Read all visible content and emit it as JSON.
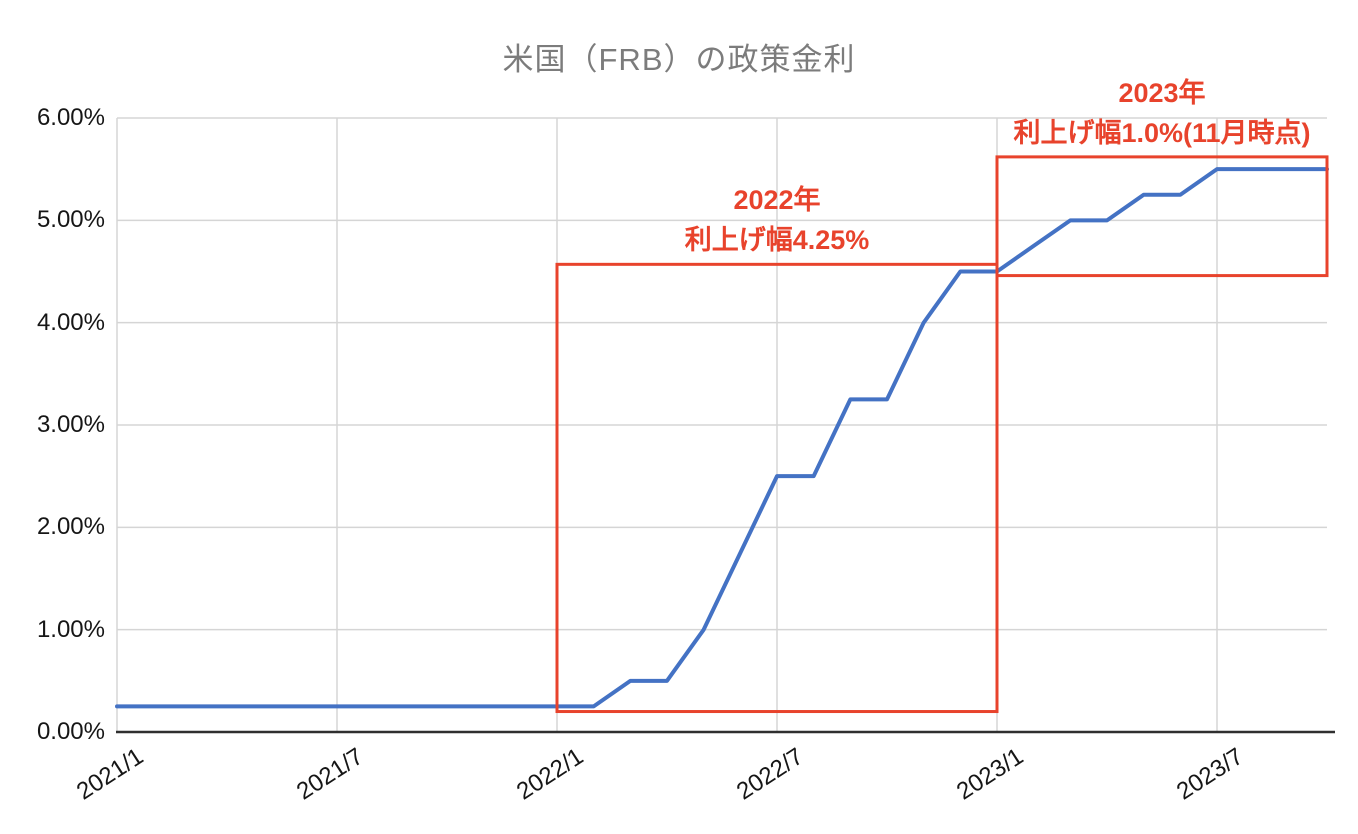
{
  "title": "米国（FRB）の政策金利",
  "colors": {
    "line": "#4472C4",
    "annotation": "#E8432C",
    "title": "#7C7C7C",
    "grid": "#D5D5D5",
    "axis": "#2F2F2F",
    "tick_label": "#161616",
    "background": "#FFFFFF"
  },
  "chart_data": {
    "type": "line",
    "title": "米国（FRB）の政策金利",
    "xlabel": "",
    "ylabel": "",
    "grid": true,
    "legend": "none",
    "ylim": [
      0,
      6
    ],
    "yticks": [
      {
        "value": 0,
        "label": "0.00%"
      },
      {
        "value": 1,
        "label": "1.00%"
      },
      {
        "value": 2,
        "label": "2.00%"
      },
      {
        "value": 3,
        "label": "3.00%"
      },
      {
        "value": 4,
        "label": "4.00%"
      },
      {
        "value": 5,
        "label": "5.00%"
      },
      {
        "value": 6,
        "label": "6.00%"
      }
    ],
    "xticks": [
      "2021/1",
      "2021/7",
      "2022/1",
      "2022/7",
      "2023/1",
      "2023/7"
    ],
    "x": [
      "2021/1",
      "2021/2",
      "2021/3",
      "2021/4",
      "2021/5",
      "2021/6",
      "2021/7",
      "2021/8",
      "2021/9",
      "2021/10",
      "2021/11",
      "2021/12",
      "2022/1",
      "2022/2",
      "2022/3",
      "2022/4",
      "2022/5",
      "2022/6",
      "2022/7",
      "2022/8",
      "2022/9",
      "2022/10",
      "2022/11",
      "2022/12",
      "2023/1",
      "2023/2",
      "2023/3",
      "2023/4",
      "2023/5",
      "2023/6",
      "2023/7",
      "2023/8",
      "2023/9",
      "2023/10"
    ],
    "series": [
      {
        "name": "政策金利",
        "values": [
          0.25,
          0.25,
          0.25,
          0.25,
          0.25,
          0.25,
          0.25,
          0.25,
          0.25,
          0.25,
          0.25,
          0.25,
          0.25,
          0.25,
          0.5,
          0.5,
          1.0,
          1.75,
          2.5,
          2.5,
          3.25,
          3.25,
          4.0,
          4.5,
          4.5,
          4.75,
          5.0,
          5.0,
          5.25,
          5.25,
          5.5,
          5.5,
          5.5,
          5.5
        ]
      }
    ],
    "annotations": [
      {
        "id": "box-2022",
        "lines": [
          "2022年",
          "利上げ幅4.25%"
        ],
        "x_start": "2022/1",
        "x_end": "2023/1",
        "y_bottom": 0.2,
        "y_top": 4.57
      },
      {
        "id": "box-2023",
        "lines": [
          "2023年",
          "利上げ幅1.0%(11月時点)"
        ],
        "x_start": "2023/1",
        "x_end": "2023/10",
        "y_bottom": 4.46,
        "y_top": 5.62
      }
    ]
  }
}
